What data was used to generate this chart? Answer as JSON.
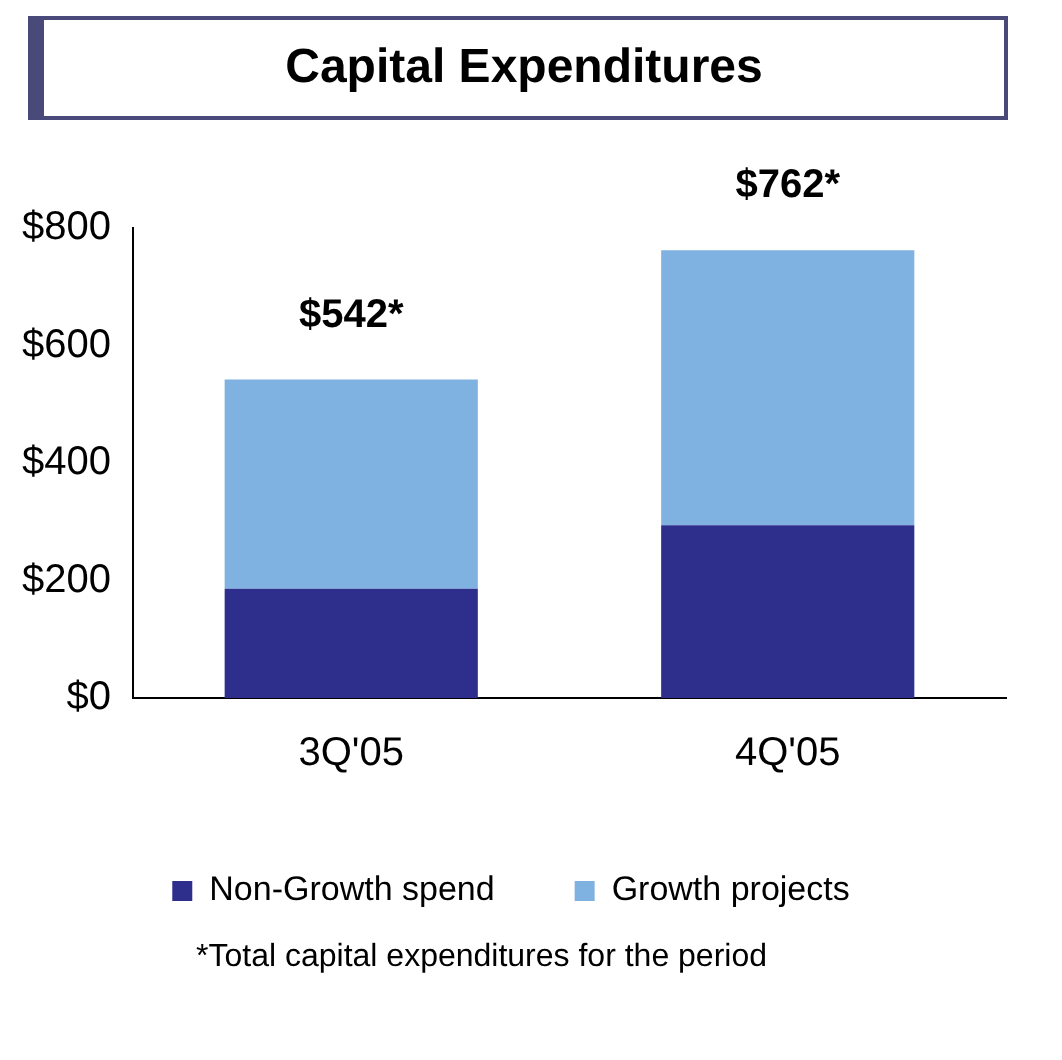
{
  "chart_data": {
    "type": "bar",
    "title": "Capital Expenditures",
    "categories": [
      "3Q'05",
      "4Q'05"
    ],
    "series": [
      {
        "name": "Non-Growth spend",
        "color": "#2e2e8c",
        "values": [
          186,
          294
        ]
      },
      {
        "name": "Growth projects",
        "color": "#7fb2e0",
        "values": [
          356,
          468
        ]
      }
    ],
    "stacked": true,
    "totals": [
      "$542*",
      "$762*"
    ],
    "ylim": [
      0,
      800
    ],
    "yticks": [
      {
        "value": 0,
        "label": "$0"
      },
      {
        "value": 200,
        "label": "$200"
      },
      {
        "value": 400,
        "label": "$400"
      },
      {
        "value": 600,
        "label": "$600"
      },
      {
        "value": 800,
        "label": "$800"
      }
    ],
    "grid": false,
    "legend": "bottom",
    "annotations": [
      "*Total capital expenditures for the period"
    ]
  }
}
